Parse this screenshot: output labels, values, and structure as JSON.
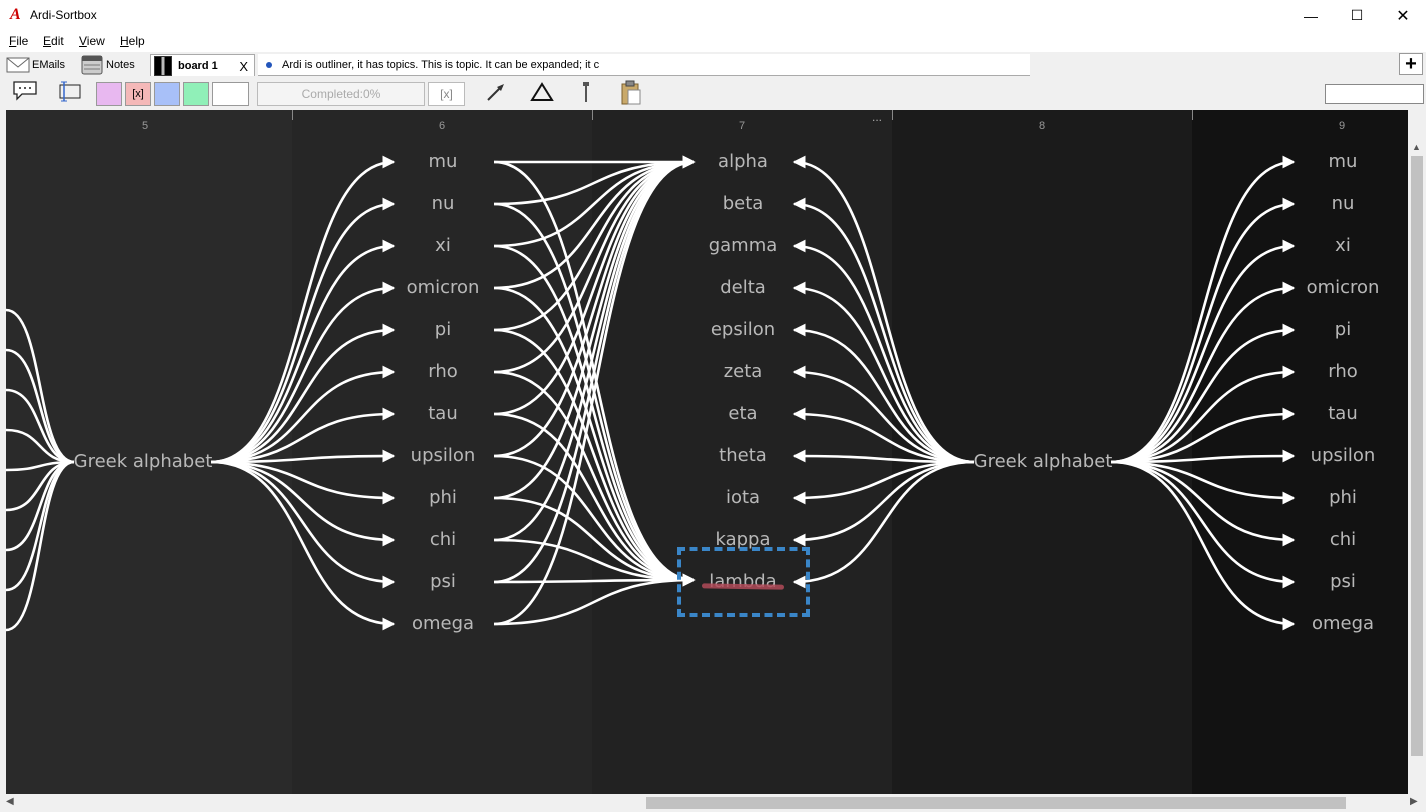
{
  "window": {
    "logo": "A",
    "title": "Ardi-Sortbox",
    "minimize": "—",
    "maximize": "☐",
    "close": "✕"
  },
  "menu": [
    "File",
    "Edit",
    "View",
    "Help"
  ],
  "tabs": {
    "emails": "EMails",
    "notes": "Notes",
    "board": "board 1",
    "board_close": "X",
    "outline": "Ardi is outliner, it has topics. This is topic. It can be expanded; it c",
    "add": "+"
  },
  "toolbar": {
    "swatch_x": "[x]",
    "progress": "Completed:0%",
    "clear": "[x]",
    "swatch_colors": [
      "#e8b8f0",
      "#f4b8b8",
      "#a8c0f8",
      "#90f0b8",
      "#ffffff"
    ]
  },
  "board": {
    "columns": [
      "5",
      "6",
      "7",
      "8",
      "9"
    ],
    "more": "...",
    "col5": {
      "root": "Greek alphabet"
    },
    "col6": {
      "items": [
        "mu",
        "nu",
        "xi",
        "omicron",
        "pi",
        "rho",
        "tau",
        "upsilon",
        "phi",
        "chi",
        "psi",
        "omega"
      ]
    },
    "col7": {
      "items": [
        "alpha",
        "beta",
        "gamma",
        "delta",
        "epsilon",
        "zeta",
        "eta",
        "theta",
        "iota",
        "kappa",
        "lambda"
      ]
    },
    "col8": {
      "root": "Greek alphabet"
    },
    "col9": {
      "items": [
        "mu",
        "nu",
        "xi",
        "omicron",
        "pi",
        "rho",
        "tau",
        "upsilon",
        "phi",
        "chi",
        "psi",
        "omega"
      ]
    },
    "selected": "lambda"
  }
}
